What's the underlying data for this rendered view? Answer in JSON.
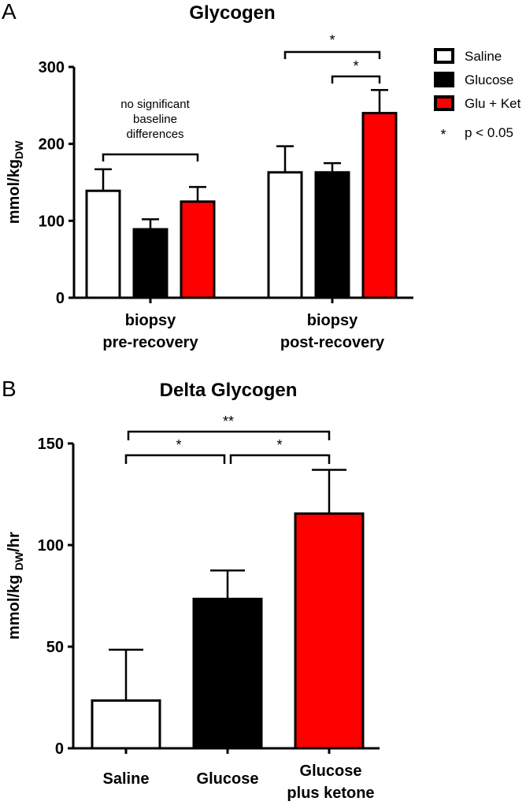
{
  "chart_data": [
    {
      "panel": "A",
      "type": "bar",
      "title": "Glycogen",
      "ylabel": "mmol/kg",
      "ylabel_sub": "DW",
      "ylim": [
        0,
        300
      ],
      "yticks": [
        0,
        100,
        200,
        300
      ],
      "categories": [
        "biopsy\npre-recovery",
        "biopsy\npost-recovery"
      ],
      "category_lines": [
        [
          "biopsy",
          "pre-recovery"
        ],
        [
          "biopsy",
          "post-recovery"
        ]
      ],
      "series": [
        {
          "name": "Saline",
          "color": "#ffffff",
          "values": [
            139,
            163
          ],
          "errors": [
            28,
            34
          ]
        },
        {
          "name": "Glucose",
          "color": "#000000",
          "values": [
            89,
            163
          ],
          "errors": [
            13,
            12
          ]
        },
        {
          "name": "Glu + Ket",
          "color": "#ff0000",
          "values": [
            125,
            240
          ],
          "errors": [
            19,
            30
          ]
        }
      ],
      "annotations": [
        {
          "text_lines": [
            "no significant",
            "baseline",
            "differences"
          ],
          "from": [
            0,
            0
          ],
          "to": [
            0,
            2
          ]
        },
        {
          "text": "*",
          "from": [
            1,
            0
          ],
          "to": [
            1,
            2
          ]
        },
        {
          "text": "*",
          "from": [
            1,
            1
          ],
          "to": [
            1,
            2
          ]
        }
      ],
      "legend": {
        "position": "top-right",
        "entries": [
          {
            "label": "Saline",
            "color": "#ffffff"
          },
          {
            "label": "Glucose",
            "color": "#000000"
          },
          {
            "label": "Glu + Ket",
            "color": "#ff0000"
          }
        ],
        "note_symbol": "*",
        "note_text": "p < 0.05"
      },
      "grid": false
    },
    {
      "panel": "B",
      "type": "bar",
      "title": "Delta Glycogen",
      "ylabel": "mmol/kg",
      "ylabel_sub": "DW",
      "ylabel_suffix": "/hr",
      "ylim": [
        0,
        150
      ],
      "yticks": [
        0,
        50,
        100,
        150
      ],
      "categories": [
        "Saline",
        "Glucose",
        "Glucose plus ketone"
      ],
      "category_lines": [
        [
          "Saline"
        ],
        [
          "Glucose"
        ],
        [
          "Glucose",
          "plus ketone"
        ]
      ],
      "values": [
        23.5,
        73.5,
        115.5
      ],
      "errors": [
        25,
        14,
        21.5
      ],
      "colors": [
        "#ffffff",
        "#000000",
        "#ff0000"
      ],
      "annotations": [
        {
          "text": "*",
          "from": 0,
          "to": 1
        },
        {
          "text": "*",
          "from": 1,
          "to": 2
        },
        {
          "text": "**",
          "from": 0,
          "to": 2
        }
      ],
      "grid": false
    }
  ]
}
